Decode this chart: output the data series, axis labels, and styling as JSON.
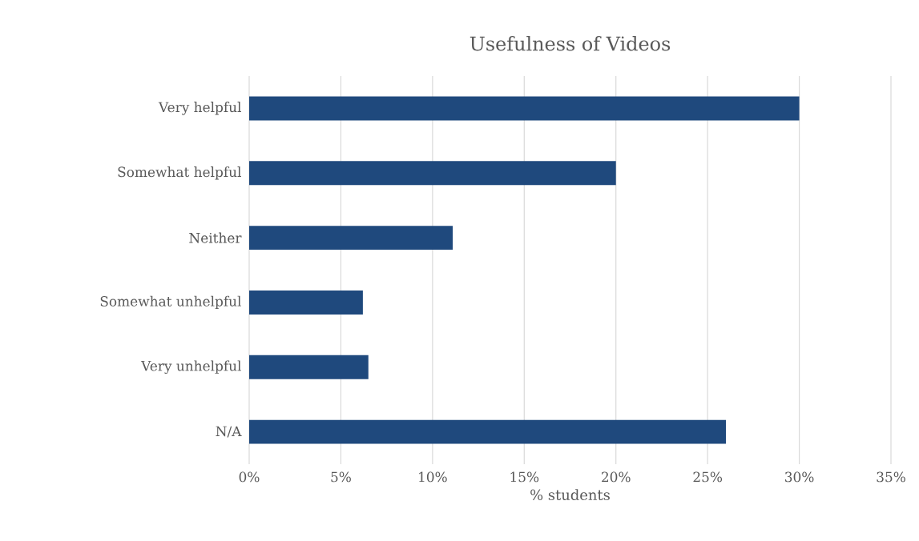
{
  "chart_data": {
    "type": "bar",
    "orientation": "horizontal",
    "title": "Usefulness of Videos",
    "xlabel": "% students",
    "categories": [
      "Very helpful",
      "Somewhat helpful",
      "Neither",
      "Somewhat unhelpful",
      "Very unhelpful",
      "N/A"
    ],
    "values": [
      30,
      20,
      11.1,
      6.2,
      6.5,
      26
    ],
    "color": "#1f497d",
    "xlim": [
      0,
      35
    ],
    "xticks": [
      {
        "value": 0,
        "label": "0%"
      },
      {
        "value": 5,
        "label": "5%"
      },
      {
        "value": 10,
        "label": "10%"
      },
      {
        "value": 15,
        "label": "15%"
      },
      {
        "value": 20,
        "label": "20%"
      },
      {
        "value": 25,
        "label": "25%"
      },
      {
        "value": 30,
        "label": "30%"
      },
      {
        "value": 35,
        "label": "35%"
      }
    ],
    "grid": "x"
  }
}
